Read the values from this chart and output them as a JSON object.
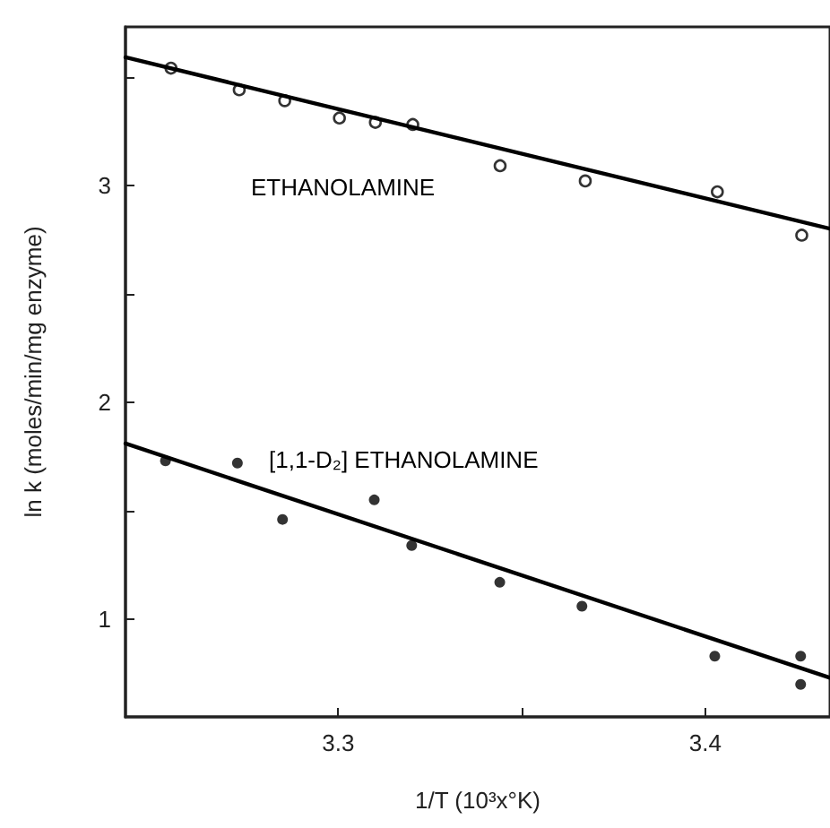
{
  "chart_data": {
    "type": "scatter",
    "xlabel": "1/T (10³x°K)",
    "ylabel": "ln k (moles/min/mg enzyme)",
    "xlim": [
      3.242,
      3.434
    ],
    "xticks": [
      3.3,
      {
        "value": 3.35,
        "label": null
      },
      3.4
    ],
    "ylim": [
      0.55,
      3.73
    ],
    "yticks": [
      1,
      {
        "value": 1.5,
        "label": null
      },
      2,
      {
        "value": 2.5,
        "label": null
      },
      3,
      {
        "value": 3.5,
        "label": null
      }
    ],
    "grid": false,
    "marker": "circle",
    "series": [
      {
        "name": "ETHANOLAMINE",
        "color": "#000000",
        "x": [
          3.2544,
          3.273,
          3.2854,
          3.3003,
          3.3101,
          3.3203,
          3.3441,
          3.3673,
          3.4033,
          3.4263
        ],
        "values": [
          3.54,
          3.44,
          3.39,
          3.31,
          3.29,
          3.28,
          3.09,
          3.02,
          2.97,
          2.77
        ]
      },
      {
        "name": "[1,1-D₂] ETHANOLAMINE",
        "color": "#000000",
        "x": [
          3.2529,
          3.2725,
          3.2848,
          3.3098,
          3.32,
          3.344,
          3.3664,
          3.4026,
          3.426,
          3.426
        ],
        "values": [
          1.73,
          1.72,
          1.46,
          1.55,
          1.34,
          1.17,
          1.06,
          0.83,
          0.83,
          0.7
        ]
      },
      {
        "type": "line",
        "color": "#000000",
        "marker": "none",
        "line_style": "solid",
        "x": [
          3.242,
          3.434
        ],
        "values": [
          3.59,
          2.8
        ]
      },
      {
        "type": "line",
        "color": "#000000",
        "marker": "none",
        "line_style": "solid",
        "x": [
          3.242,
          3.434
        ],
        "values": [
          1.81,
          0.73
        ]
      }
    ]
  }
}
